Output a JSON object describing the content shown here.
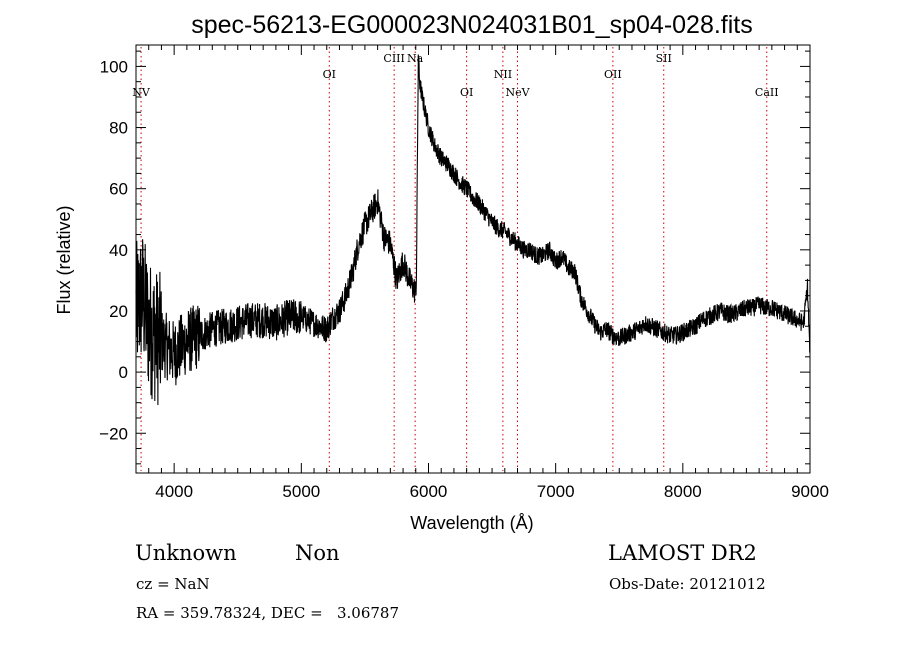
{
  "chart_data": {
    "type": "line",
    "title": "spec-56213-EG000023N024031B01_sp04-028.fits",
    "xlabel": "Wavelength (Å)",
    "ylabel": "Flux (relative)",
    "xlim": [
      3700,
      9000
    ],
    "ylim": [
      -33,
      107
    ],
    "x_ticks": [
      4000,
      5000,
      6000,
      7000,
      8000,
      9000
    ],
    "y_ticks": [
      -20,
      0,
      20,
      40,
      60,
      80,
      100
    ],
    "x_tick_labels": [
      "4000",
      "5000",
      "6000",
      "7000",
      "8000",
      "9000"
    ],
    "y_tick_labels": [
      "−20",
      "0",
      "20",
      "40",
      "60",
      "80",
      "100"
    ],
    "series": [
      {
        "x": [
          3700,
          3750,
          3800,
          3850,
          3900,
          3950,
          4000,
          4100,
          4200,
          4300,
          4400,
          4500,
          4600,
          4700,
          4800,
          4900,
          5000,
          5100,
          5150,
          5200,
          5250,
          5300,
          5350,
          5400,
          5450,
          5500,
          5550,
          5600,
          5650,
          5700,
          5750,
          5800,
          5850,
          5900,
          5905,
          5910,
          5920,
          5930,
          5950,
          6000,
          6050,
          6100,
          6150,
          6200,
          6250,
          6300,
          6350,
          6400,
          6450,
          6500,
          6550,
          6600,
          6650,
          6700,
          6750,
          6800,
          6850,
          6900,
          6950,
          7000,
          7050,
          7100,
          7150,
          7200,
          7250,
          7300,
          7350,
          7400,
          7450,
          7500,
          7550,
          7600,
          7650,
          7700,
          7750,
          7800,
          7850,
          7900,
          7950,
          8000,
          8050,
          8100,
          8150,
          8200,
          8250,
          8300,
          8350,
          8400,
          8450,
          8500,
          8550,
          8600,
          8650,
          8700,
          8750,
          8800,
          8850,
          8900,
          8950,
          8980,
          9000
        ],
        "y": [
          20,
          25,
          15,
          12,
          10,
          8,
          6,
          10,
          12,
          14,
          15,
          16,
          17,
          17,
          16,
          18,
          18,
          16,
          15,
          14,
          18,
          20,
          25,
          32,
          42,
          48,
          52,
          56,
          44,
          42,
          30,
          36,
          30,
          26,
          30,
          55,
          104,
          95,
          90,
          80,
          74,
          70,
          68,
          65,
          62,
          60,
          57,
          55,
          52,
          49,
          47,
          46,
          44,
          42,
          40,
          40,
          38,
          38,
          40,
          36,
          38,
          34,
          33,
          24,
          20,
          16,
          13,
          14,
          12,
          11,
          12,
          13,
          14,
          16,
          15,
          14,
          13,
          12,
          12,
          13,
          14,
          15,
          17,
          18,
          19,
          20,
          19,
          19,
          20,
          21,
          21,
          22,
          21,
          21,
          20,
          19,
          18,
          17,
          16,
          28,
          5
        ]
      }
    ],
    "line_labels": [
      {
        "wavelength": 3740,
        "label": "NV",
        "row": 2
      },
      {
        "wavelength": 5220,
        "label": "OI",
        "row": 1
      },
      {
        "wavelength": 5730,
        "label": "CIII",
        "row": 0
      },
      {
        "wavelength": 5895,
        "label": "Na",
        "row": 0
      },
      {
        "wavelength": 6300,
        "label": "OI",
        "row": 2
      },
      {
        "wavelength": 6585,
        "label": "NII",
        "row": 1
      },
      {
        "wavelength": 6700,
        "label": "NeV",
        "row": 2
      },
      {
        "wavelength": 7450,
        "label": "OII",
        "row": 1
      },
      {
        "wavelength": 7850,
        "label": "SII",
        "row": 0
      },
      {
        "wavelength": 8660,
        "label": "CaII",
        "row": 2
      }
    ],
    "grid": false,
    "line_color": "#000000",
    "marker_color": "#cc0000"
  },
  "footer": {
    "object_type": "Unknown",
    "object_subclass": "Non",
    "redshift_text": "cz = NaN",
    "coords_text": "RA = 359.78324, DEC =   3.06787",
    "survey": "LAMOST DR2",
    "obs_date_text": "Obs-Date: 20121012"
  }
}
